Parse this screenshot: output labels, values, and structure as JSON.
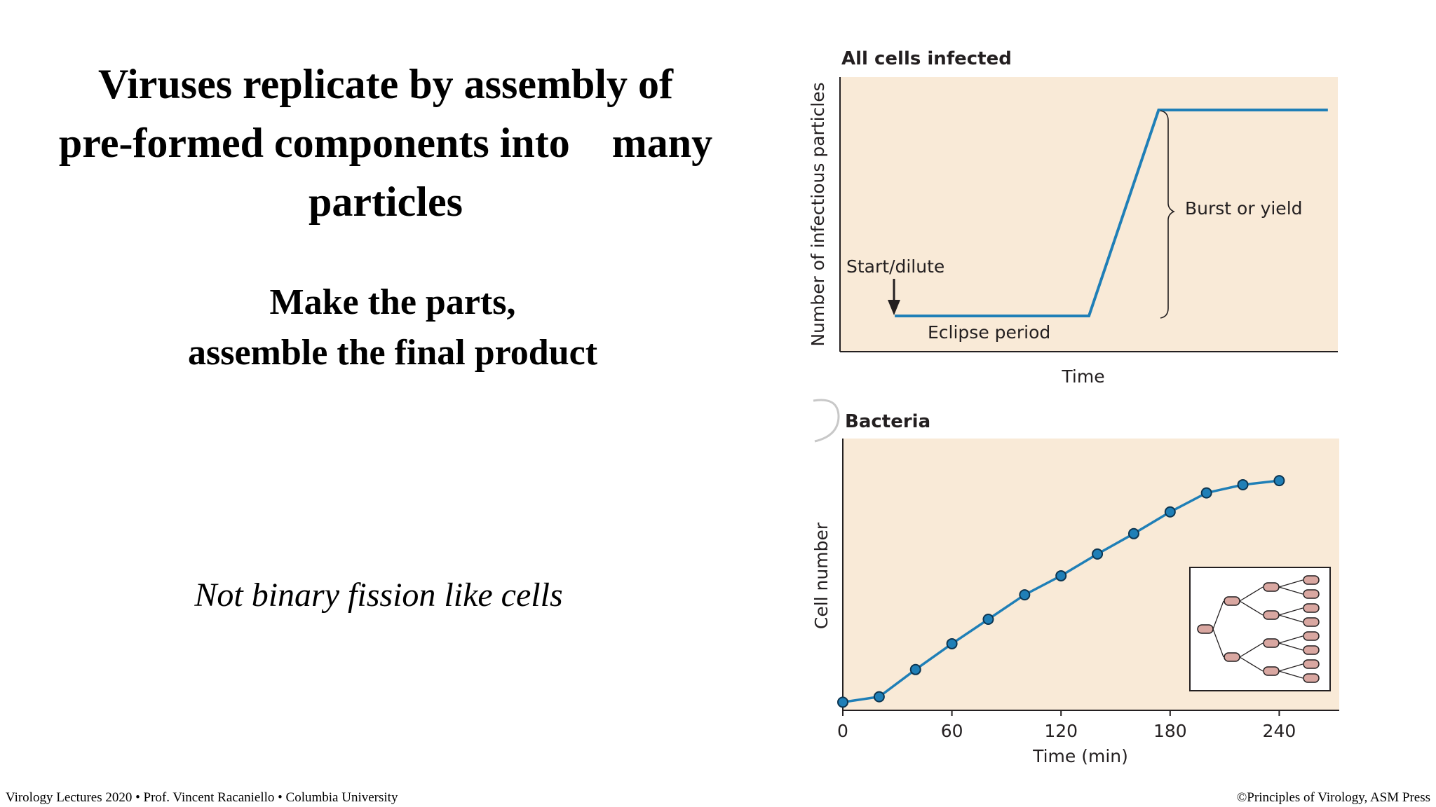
{
  "slide": {
    "title_lines": [
      "Viruses replicate by assembly of",
      "pre-formed components into    many",
      "particles"
    ],
    "subtitle_lines": [
      "Make the parts,",
      "assemble the final product"
    ],
    "note": "Not binary fission like cells",
    "footer_left": "Virology Lectures 2020  • Prof. Vincent  Racaniello • Columbia University",
    "footer_right": "©Principles of Virology, ASM Press"
  },
  "colors": {
    "plot_background": "#f9ead7",
    "line": "#1f7fb7",
    "marker_fill": "#1f7fb7",
    "inset_cell_fill": "#d9a7a1"
  },
  "chart_data": [
    {
      "type": "line",
      "title": "All cells infected",
      "xlabel": "Time",
      "ylabel": "Number of infectious particles",
      "annotations": {
        "start": "Start/dilute",
        "eclipse": "Eclipse period",
        "burst": "Burst or yield"
      },
      "series": [
        {
          "x": [
            0.11,
            0.5,
            0.64,
            0.98
          ],
          "y": [
            0.13,
            0.13,
            0.88,
            0.88
          ]
        }
      ],
      "xlim": [
        0,
        1
      ],
      "ylim": [
        0,
        1
      ]
    },
    {
      "type": "line",
      "title": "Bacteria",
      "xlabel": "Time (min)",
      "ylabel": "Cell number",
      "x_ticks": [
        0,
        60,
        120,
        180,
        240
      ],
      "x_tick_labels": [
        "0",
        "60",
        "120",
        "180",
        "240"
      ],
      "xlim": [
        0,
        273
      ],
      "ylim": [
        0,
        1
      ],
      "series": [
        {
          "x": [
            0,
            20,
            40,
            60,
            80,
            100,
            120,
            140,
            160,
            180,
            200,
            220,
            240
          ],
          "y": [
            0.03,
            0.05,
            0.15,
            0.245,
            0.335,
            0.425,
            0.495,
            0.575,
            0.65,
            0.73,
            0.8,
            0.83,
            0.845
          ]
        }
      ]
    }
  ]
}
